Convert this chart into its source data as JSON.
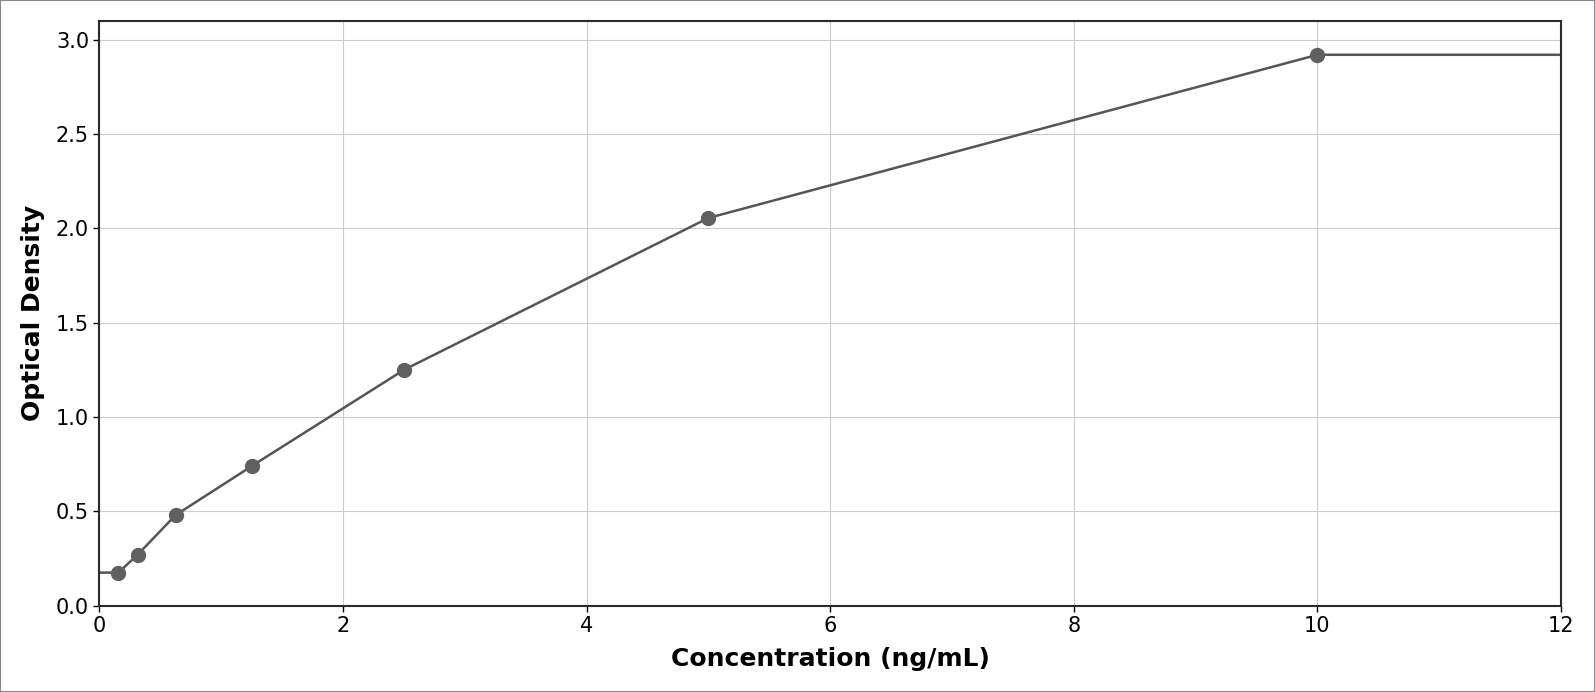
{
  "x_data": [
    0.156,
    0.313,
    0.625,
    1.25,
    2.5,
    5.0,
    10.0
  ],
  "y_data": [
    0.175,
    0.27,
    0.48,
    0.74,
    1.25,
    2.055,
    2.92
  ],
  "xlabel": "Concentration (ng/mL)",
  "ylabel": "Optical Density",
  "xlim": [
    0,
    12
  ],
  "ylim": [
    0,
    3.1
  ],
  "xticks": [
    0,
    2,
    4,
    6,
    8,
    10,
    12
  ],
  "yticks": [
    0,
    0.5,
    1.0,
    1.5,
    2.0,
    2.5,
    3.0
  ],
  "marker_color": "#606060",
  "line_color": "#555555",
  "grid_color": "#cccccc",
  "bg_color": "#ffffff",
  "border_color": "#2a2a2a",
  "marker_size": 10,
  "line_width": 1.8,
  "xlabel_fontsize": 18,
  "ylabel_fontsize": 18,
  "tick_fontsize": 15,
  "xlabel_fontweight": "bold",
  "ylabel_fontweight": "bold",
  "figure_border_color": "#888888",
  "figure_border_linewidth": 1.5
}
